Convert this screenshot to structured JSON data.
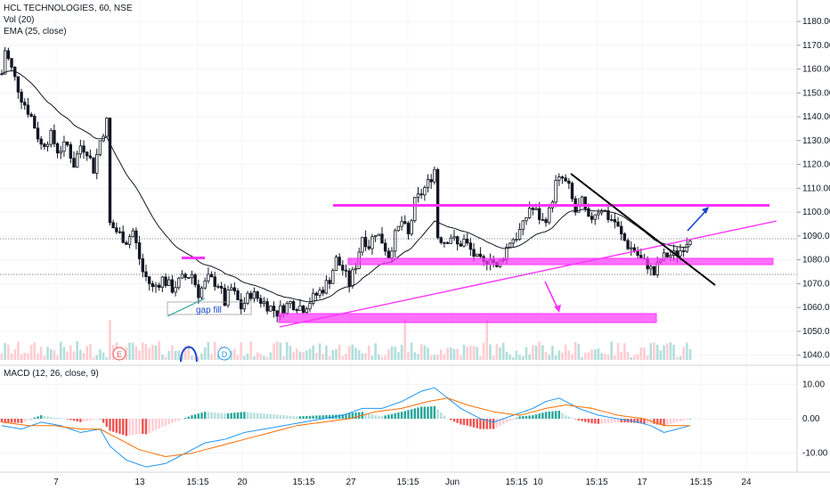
{
  "header": {
    "symbol_line": "HCL TECHNOLOGIES, 60, NSE",
    "vol_label": "Vol (20)",
    "ema_label": "EMA (25, close)",
    "macd_label": "MACD (12, 26, close, 9)"
  },
  "colors": {
    "up": "#26a69a",
    "down": "#ef5350",
    "candle": "#131722",
    "ema": "#131722",
    "zone": "#ff33ff",
    "trend": "#ff33ff",
    "resistance": "#000000",
    "arrow_up": "#1848cc",
    "arrow_down": "#ff33ff",
    "macd_line": "#2196f3",
    "signal_line": "#ff6d00",
    "hist_up": "#26a69a",
    "hist_up_light": "#b2dfdb",
    "hist_down": "#ef5350",
    "hist_down_light": "#ffcdd2"
  },
  "annotations": {
    "gap_fill": "gap fill",
    "event_e": "E",
    "event_d": "D"
  },
  "chart_data": [
    {
      "type": "candlestick",
      "title": "HCL TECHNOLOGIES, 60, NSE",
      "ylim": [
        1038,
        1186
      ],
      "y_ticks": [
        "1040.00",
        "1050.00",
        "1060.00",
        "1070.00",
        "1080.00",
        "1090.00",
        "1100.00",
        "1110.00",
        "1120.00",
        "1130.00",
        "1140.00",
        "1150.00",
        "1160.00",
        "1170.00",
        "1180.00"
      ],
      "x_ticks": [
        "7",
        "13",
        "15:15",
        "20",
        "15:15",
        "27",
        "15:15",
        "Jun",
        "15:15",
        "10",
        "15:15",
        "17",
        "15:15",
        "24"
      ],
      "grid": true,
      "price_path": [
        [
          0,
          1158
        ],
        [
          1,
          1168
        ],
        [
          3,
          1160
        ],
        [
          6,
          1148
        ],
        [
          9,
          1140
        ],
        [
          12,
          1128
        ],
        [
          15,
          1132
        ],
        [
          17,
          1126
        ],
        [
          20,
          1128
        ],
        [
          22,
          1120
        ],
        [
          24,
          1128
        ],
        [
          26,
          1126
        ],
        [
          28,
          1118
        ],
        [
          30,
          1130
        ],
        [
          32,
          1138
        ],
        [
          33,
          1095
        ],
        [
          35,
          1092
        ],
        [
          38,
          1088
        ],
        [
          40,
          1092
        ],
        [
          43,
          1075
        ],
        [
          46,
          1068
        ],
        [
          49,
          1072
        ],
        [
          52,
          1068
        ],
        [
          55,
          1072
        ],
        [
          58,
          1074
        ],
        [
          60,
          1066
        ],
        [
          63,
          1072
        ],
        [
          66,
          1070
        ],
        [
          68,
          1062
        ],
        [
          70,
          1068
        ],
        [
          73,
          1060
        ],
        [
          76,
          1066
        ],
        [
          80,
          1062
        ],
        [
          84,
          1058
        ],
        [
          88,
          1062
        ],
        [
          92,
          1060
        ],
        [
          95,
          1064
        ],
        [
          98,
          1068
        ],
        [
          100,
          1072
        ],
        [
          102,
          1080
        ],
        [
          104,
          1076
        ],
        [
          106,
          1070
        ],
        [
          108,
          1078
        ],
        [
          110,
          1090
        ],
        [
          112,
          1086
        ],
        [
          114,
          1092
        ],
        [
          116,
          1088
        ],
        [
          118,
          1082
        ],
        [
          120,
          1090
        ],
        [
          122,
          1096
        ],
        [
          124,
          1090
        ],
        [
          126,
          1104
        ],
        [
          128,
          1108
        ],
        [
          130,
          1112
        ],
        [
          132,
          1118
        ],
        [
          133,
          1090
        ],
        [
          135,
          1088
        ],
        [
          137,
          1090
        ],
        [
          139,
          1086
        ],
        [
          141,
          1088
        ],
        [
          143,
          1084
        ],
        [
          145,
          1080
        ],
        [
          147,
          1078
        ],
        [
          149,
          1082
        ],
        [
          151,
          1076
        ],
        [
          153,
          1082
        ],
        [
          155,
          1088
        ],
        [
          157,
          1090
        ],
        [
          159,
          1094
        ],
        [
          161,
          1102
        ],
        [
          163,
          1100
        ],
        [
          165,
          1096
        ],
        [
          167,
          1100
        ],
        [
          169,
          1112
        ],
        [
          171,
          1114
        ],
        [
          173,
          1110
        ],
        [
          175,
          1100
        ],
        [
          177,
          1104
        ],
        [
          179,
          1096
        ],
        [
          181,
          1100
        ],
        [
          183,
          1102
        ],
        [
          185,
          1098
        ],
        [
          187,
          1096
        ],
        [
          189,
          1090
        ],
        [
          191,
          1086
        ],
        [
          193,
          1084
        ],
        [
          195,
          1080
        ],
        [
          197,
          1078
        ],
        [
          199,
          1074
        ],
        [
          201,
          1080
        ],
        [
          203,
          1082
        ],
        [
          205,
          1082
        ],
        [
          207,
          1084
        ],
        [
          209,
          1088
        ],
        [
          210,
          1090
        ]
      ]
    },
    {
      "type": "line",
      "name": "MACD (12, 26, close, 9)",
      "ylim": [
        -15,
        15
      ],
      "y_ticks": [
        "10.00",
        "0.00",
        "-10.00"
      ],
      "grid": true,
      "macd_path": [
        [
          0,
          -2
        ],
        [
          6,
          -3
        ],
        [
          12,
          -1
        ],
        [
          18,
          -2
        ],
        [
          24,
          -4
        ],
        [
          30,
          -3
        ],
        [
          33,
          -8
        ],
        [
          38,
          -12
        ],
        [
          44,
          -14
        ],
        [
          50,
          -13
        ],
        [
          56,
          -10
        ],
        [
          62,
          -7
        ],
        [
          68,
          -6
        ],
        [
          74,
          -4
        ],
        [
          80,
          -3
        ],
        [
          86,
          -2
        ],
        [
          92,
          -1
        ],
        [
          98,
          0
        ],
        [
          104,
          1
        ],
        [
          110,
          3
        ],
        [
          116,
          3
        ],
        [
          122,
          5
        ],
        [
          128,
          8
        ],
        [
          132,
          9
        ],
        [
          136,
          6
        ],
        [
          140,
          3
        ],
        [
          146,
          0
        ],
        [
          150,
          -1
        ],
        [
          156,
          1
        ],
        [
          162,
          3
        ],
        [
          166,
          5
        ],
        [
          170,
          6
        ],
        [
          176,
          3
        ],
        [
          182,
          1
        ],
        [
          188,
          0
        ],
        [
          194,
          -1
        ],
        [
          198,
          -2
        ],
        [
          202,
          -4
        ],
        [
          206,
          -3
        ],
        [
          210,
          -2
        ]
      ],
      "signal_path": [
        [
          0,
          -1
        ],
        [
          8,
          -2
        ],
        [
          16,
          -2
        ],
        [
          24,
          -3
        ],
        [
          30,
          -3
        ],
        [
          36,
          -6
        ],
        [
          42,
          -9
        ],
        [
          50,
          -11
        ],
        [
          58,
          -10
        ],
        [
          66,
          -8
        ],
        [
          74,
          -6
        ],
        [
          82,
          -4
        ],
        [
          90,
          -2
        ],
        [
          98,
          -1
        ],
        [
          106,
          0
        ],
        [
          114,
          2
        ],
        [
          122,
          3
        ],
        [
          130,
          5
        ],
        [
          136,
          6
        ],
        [
          142,
          4
        ],
        [
          150,
          2
        ],
        [
          158,
          1
        ],
        [
          166,
          3
        ],
        [
          172,
          4
        ],
        [
          180,
          3
        ],
        [
          188,
          1
        ],
        [
          196,
          0
        ],
        [
          202,
          -2
        ],
        [
          210,
          -2
        ]
      ]
    }
  ]
}
